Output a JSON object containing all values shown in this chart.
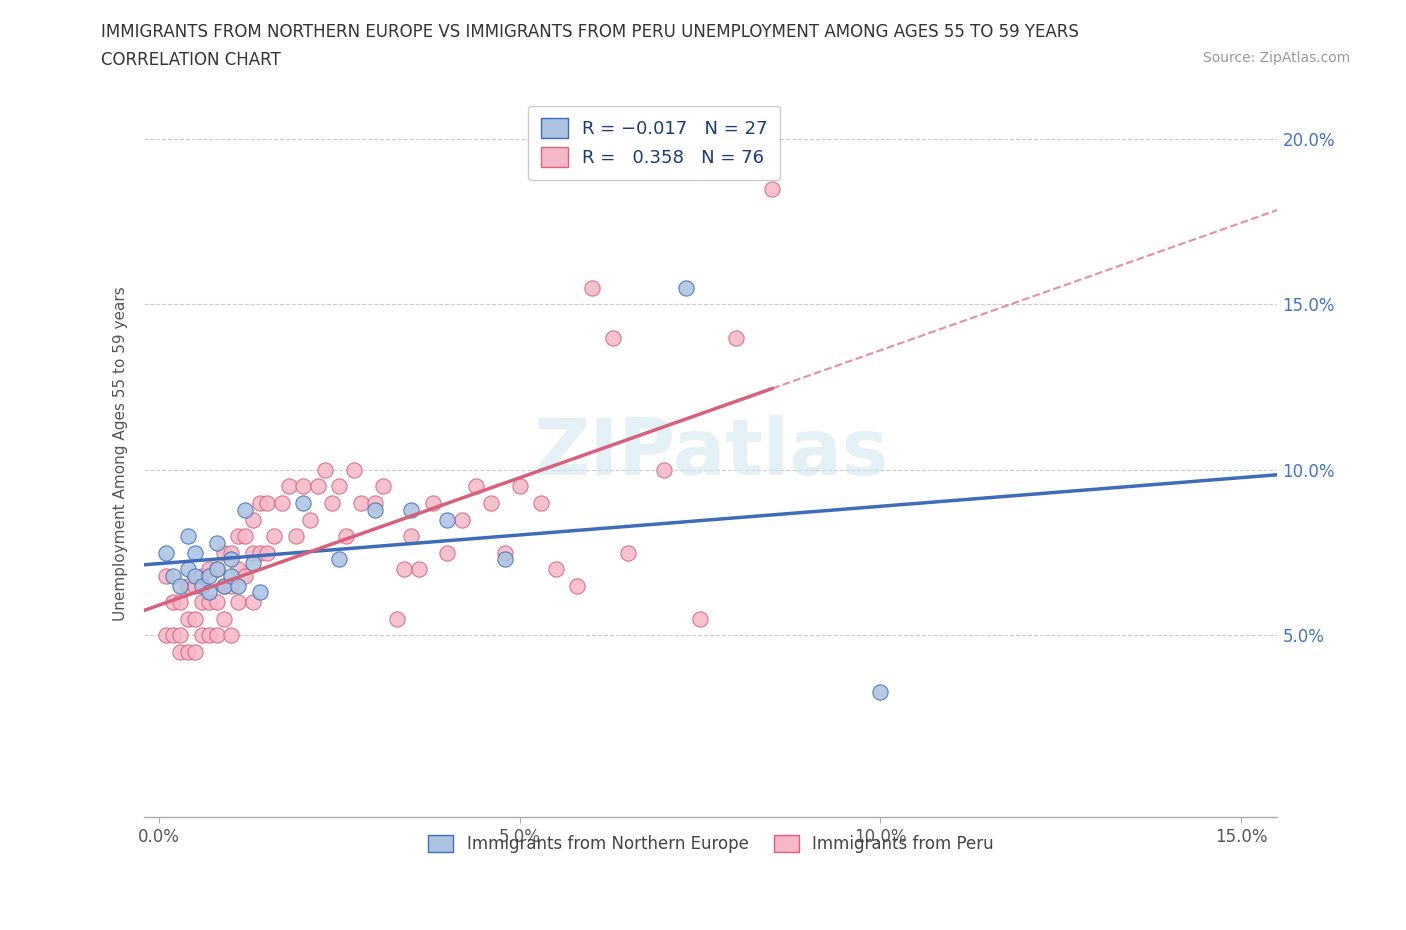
{
  "title_line1": "IMMIGRANTS FROM NORTHERN EUROPE VS IMMIGRANTS FROM PERU UNEMPLOYMENT AMONG AGES 55 TO 59 YEARS",
  "title_line2": "CORRELATION CHART",
  "source_text": "Source: ZipAtlas.com",
  "ylabel": "Unemployment Among Ages 55 to 59 years",
  "xlabel_northern": "Immigrants from Northern Europe",
  "xlabel_peru": "Immigrants from Peru",
  "watermark": "ZIPatlas",
  "xlim": [
    -0.002,
    0.155
  ],
  "ylim": [
    -0.005,
    0.215
  ],
  "yticks": [
    0.05,
    0.1,
    0.15,
    0.2
  ],
  "ytick_labels": [
    "5.0%",
    "10.0%",
    "15.0%",
    "20.0%"
  ],
  "xticks": [
    0.0,
    0.05,
    0.1,
    0.15
  ],
  "xtick_labels": [
    "0.0%",
    "5.0%",
    "10.0%",
    "15.0%"
  ],
  "color_northern": "#aac4e2",
  "color_peru": "#f5b8c8",
  "line_color_northern": "#3d6dba",
  "line_color_peru": "#d9607a",
  "R_northern": -0.017,
  "N_northern": 27,
  "R_peru": 0.358,
  "N_peru": 76,
  "northern_x": [
    0.001,
    0.002,
    0.003,
    0.004,
    0.004,
    0.005,
    0.005,
    0.006,
    0.007,
    0.007,
    0.008,
    0.008,
    0.009,
    0.01,
    0.01,
    0.011,
    0.012,
    0.013,
    0.014,
    0.02,
    0.025,
    0.03,
    0.035,
    0.04,
    0.048,
    0.073,
    0.1
  ],
  "northern_y": [
    0.075,
    0.068,
    0.065,
    0.07,
    0.08,
    0.068,
    0.075,
    0.065,
    0.068,
    0.063,
    0.07,
    0.078,
    0.065,
    0.068,
    0.073,
    0.065,
    0.088,
    0.072,
    0.063,
    0.09,
    0.073,
    0.088,
    0.088,
    0.085,
    0.073,
    0.155,
    0.033
  ],
  "peru_x": [
    0.001,
    0.001,
    0.002,
    0.002,
    0.003,
    0.003,
    0.003,
    0.004,
    0.004,
    0.004,
    0.005,
    0.005,
    0.005,
    0.006,
    0.006,
    0.006,
    0.007,
    0.007,
    0.007,
    0.008,
    0.008,
    0.008,
    0.009,
    0.009,
    0.009,
    0.01,
    0.01,
    0.01,
    0.011,
    0.011,
    0.011,
    0.012,
    0.012,
    0.013,
    0.013,
    0.013,
    0.014,
    0.014,
    0.015,
    0.015,
    0.016,
    0.017,
    0.018,
    0.019,
    0.02,
    0.021,
    0.022,
    0.023,
    0.024,
    0.025,
    0.026,
    0.027,
    0.028,
    0.03,
    0.031,
    0.033,
    0.034,
    0.035,
    0.036,
    0.038,
    0.04,
    0.042,
    0.044,
    0.046,
    0.048,
    0.05,
    0.053,
    0.055,
    0.058,
    0.06,
    0.063,
    0.065,
    0.07,
    0.075,
    0.08,
    0.085
  ],
  "peru_y": [
    0.068,
    0.05,
    0.06,
    0.05,
    0.06,
    0.05,
    0.045,
    0.065,
    0.055,
    0.045,
    0.065,
    0.055,
    0.045,
    0.068,
    0.06,
    0.05,
    0.07,
    0.06,
    0.05,
    0.07,
    0.06,
    0.05,
    0.075,
    0.065,
    0.055,
    0.075,
    0.065,
    0.05,
    0.08,
    0.07,
    0.06,
    0.08,
    0.068,
    0.085,
    0.075,
    0.06,
    0.09,
    0.075,
    0.09,
    0.075,
    0.08,
    0.09,
    0.095,
    0.08,
    0.095,
    0.085,
    0.095,
    0.1,
    0.09,
    0.095,
    0.08,
    0.1,
    0.09,
    0.09,
    0.095,
    0.055,
    0.07,
    0.08,
    0.07,
    0.09,
    0.075,
    0.085,
    0.095,
    0.09,
    0.075,
    0.095,
    0.09,
    0.07,
    0.065,
    0.155,
    0.14,
    0.075,
    0.1,
    0.055,
    0.14,
    0.185
  ]
}
